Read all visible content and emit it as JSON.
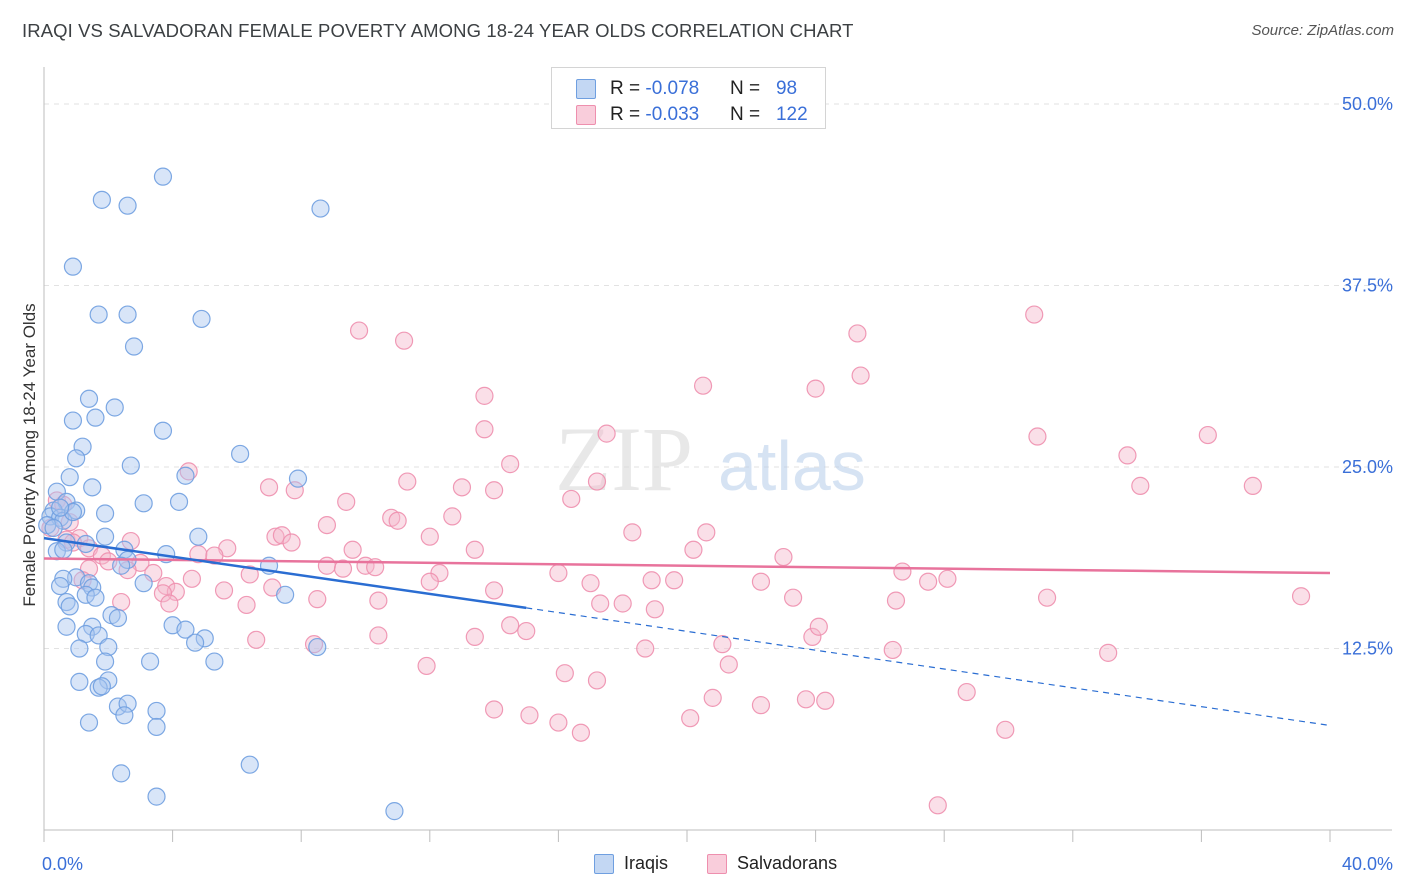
{
  "header": {
    "title": "IRAQI VS SALVADORAN FEMALE POVERTY AMONG 18-24 YEAR OLDS CORRELATION CHART",
    "source": "Source: ZipAtlas.com"
  },
  "legend": {
    "rows": [
      {
        "r_label": "R = ",
        "r_value": "-0.078",
        "n_label": "N = ",
        "n_value": "98"
      },
      {
        "r_label": "R = ",
        "r_value": "-0.033",
        "n_label": "N = ",
        "n_value": "122"
      }
    ],
    "bottom": [
      "Iraqis",
      "Salvadorans"
    ]
  },
  "colors": {
    "iraqis_fill": "#a9c6ef",
    "iraqis_stroke": "#6f9fe0",
    "iraqis_line": "#2a6dd2",
    "salvadorans_fill": "#f5b8cc",
    "salvadorans_stroke": "#ee8fae",
    "salvadorans_line": "#e8739c",
    "tick_label": "#3a6fd8",
    "grid": "#e2e2e2"
  },
  "chart_data": {
    "type": "scatter",
    "title": "IRAQI VS SALVADORAN FEMALE POVERTY AMONG 18-24 YEAR OLDS CORRELATION CHART",
    "xlabel": "",
    "ylabel": "Female Poverty Among 18-24 Year Olds",
    "xlim": [
      0,
      40
    ],
    "ylim": [
      0,
      52
    ],
    "x_tick_labels": [
      "0.0%",
      "40.0%"
    ],
    "y_ticks": [
      12.5,
      25.0,
      37.5,
      50.0
    ],
    "y_tick_labels": [
      "12.5%",
      "25.0%",
      "37.5%",
      "50.0%"
    ],
    "grid": true,
    "watermark": {
      "zip": "ZIP",
      "atlas": "atlas"
    },
    "series": [
      {
        "name": "Iraqis",
        "r": -0.078,
        "n": 98,
        "trend_solid": [
          [
            0,
            20.1
          ],
          [
            15.0,
            15.3
          ]
        ],
        "trend_dashed": [
          [
            15.0,
            15.3
          ],
          [
            40,
            7.2
          ]
        ],
        "points": [
          [
            3.7,
            45.0
          ],
          [
            1.8,
            43.4
          ],
          [
            2.6,
            43.0
          ],
          [
            8.6,
            42.8
          ],
          [
            0.9,
            38.8
          ],
          [
            1.7,
            35.5
          ],
          [
            2.6,
            35.5
          ],
          [
            4.9,
            35.2
          ],
          [
            2.8,
            33.3
          ],
          [
            1.4,
            29.7
          ],
          [
            2.2,
            29.1
          ],
          [
            0.9,
            28.2
          ],
          [
            1.6,
            28.4
          ],
          [
            3.7,
            27.5
          ],
          [
            1.2,
            26.4
          ],
          [
            6.1,
            25.9
          ],
          [
            1.0,
            25.6
          ],
          [
            2.7,
            25.1
          ],
          [
            0.8,
            24.3
          ],
          [
            4.4,
            24.4
          ],
          [
            7.9,
            24.2
          ],
          [
            1.5,
            23.6
          ],
          [
            0.4,
            23.3
          ],
          [
            0.7,
            22.6
          ],
          [
            3.1,
            22.5
          ],
          [
            4.2,
            22.6
          ],
          [
            0.3,
            22.0
          ],
          [
            1.0,
            22.0
          ],
          [
            1.9,
            21.8
          ],
          [
            0.2,
            21.6
          ],
          [
            0.5,
            21.5
          ],
          [
            0.6,
            21.3
          ],
          [
            0.1,
            21.0
          ],
          [
            4.8,
            20.2
          ],
          [
            1.9,
            20.2
          ],
          [
            0.7,
            19.8
          ],
          [
            1.3,
            19.7
          ],
          [
            0.4,
            19.2
          ],
          [
            0.6,
            19.3
          ],
          [
            2.5,
            19.3
          ],
          [
            3.8,
            19.0
          ],
          [
            2.6,
            18.6
          ],
          [
            7.0,
            18.2
          ],
          [
            2.4,
            18.2
          ],
          [
            1.0,
            17.4
          ],
          [
            0.6,
            17.3
          ],
          [
            1.4,
            17.0
          ],
          [
            1.5,
            16.7
          ],
          [
            3.1,
            17.0
          ],
          [
            0.5,
            16.8
          ],
          [
            1.3,
            16.2
          ],
          [
            1.6,
            16.0
          ],
          [
            7.5,
            16.2
          ],
          [
            0.7,
            15.7
          ],
          [
            0.8,
            15.4
          ],
          [
            2.1,
            14.8
          ],
          [
            2.3,
            14.6
          ],
          [
            1.5,
            14.0
          ],
          [
            4.0,
            14.1
          ],
          [
            4.4,
            13.8
          ],
          [
            0.7,
            14.0
          ],
          [
            1.3,
            13.5
          ],
          [
            1.7,
            13.4
          ],
          [
            5.0,
            13.2
          ],
          [
            4.7,
            12.9
          ],
          [
            8.5,
            12.6
          ],
          [
            1.1,
            12.5
          ],
          [
            2.0,
            12.6
          ],
          [
            1.9,
            11.6
          ],
          [
            3.3,
            11.6
          ],
          [
            5.3,
            11.6
          ],
          [
            2.0,
            10.3
          ],
          [
            1.1,
            10.2
          ],
          [
            1.7,
            9.8
          ],
          [
            1.8,
            9.9
          ],
          [
            2.3,
            8.5
          ],
          [
            2.6,
            8.7
          ],
          [
            3.5,
            8.2
          ],
          [
            2.5,
            7.9
          ],
          [
            1.4,
            7.4
          ],
          [
            3.5,
            7.1
          ],
          [
            6.4,
            4.5
          ],
          [
            2.4,
            3.9
          ],
          [
            3.5,
            2.3
          ],
          [
            10.9,
            1.3
          ],
          [
            0.9,
            21.9
          ],
          [
            0.3,
            20.8
          ],
          [
            0.5,
            22.2
          ]
        ]
      },
      {
        "name": "Salvadorans",
        "r": -0.033,
        "n": 122,
        "trend_solid": [
          [
            0,
            18.7
          ],
          [
            40,
            17.7
          ]
        ],
        "points": [
          [
            30.8,
            35.5
          ],
          [
            9.8,
            34.4
          ],
          [
            11.2,
            33.7
          ],
          [
            25.3,
            34.2
          ],
          [
            25.4,
            31.3
          ],
          [
            20.5,
            30.6
          ],
          [
            24.0,
            30.4
          ],
          [
            13.7,
            29.9
          ],
          [
            13.7,
            27.6
          ],
          [
            17.5,
            27.3
          ],
          [
            30.9,
            27.1
          ],
          [
            36.2,
            27.2
          ],
          [
            33.7,
            25.8
          ],
          [
            14.5,
            25.2
          ],
          [
            4.5,
            24.7
          ],
          [
            11.3,
            24.0
          ],
          [
            17.2,
            24.0
          ],
          [
            13.0,
            23.6
          ],
          [
            34.1,
            23.7
          ],
          [
            37.6,
            23.7
          ],
          [
            7.0,
            23.6
          ],
          [
            7.8,
            23.4
          ],
          [
            14.0,
            23.4
          ],
          [
            9.4,
            22.6
          ],
          [
            0.4,
            22.7
          ],
          [
            0.6,
            22.4
          ],
          [
            16.4,
            22.8
          ],
          [
            10.8,
            21.5
          ],
          [
            11.0,
            21.3
          ],
          [
            12.7,
            21.6
          ],
          [
            0.8,
            21.2
          ],
          [
            8.8,
            21.0
          ],
          [
            18.3,
            20.5
          ],
          [
            0.7,
            20.0
          ],
          [
            1.1,
            20.1
          ],
          [
            7.2,
            20.2
          ],
          [
            7.4,
            20.3
          ],
          [
            20.6,
            20.5
          ],
          [
            12.0,
            20.2
          ],
          [
            0.9,
            19.8
          ],
          [
            2.7,
            19.9
          ],
          [
            7.7,
            19.8
          ],
          [
            5.7,
            19.4
          ],
          [
            4.8,
            19.0
          ],
          [
            5.3,
            18.9
          ],
          [
            1.4,
            19.4
          ],
          [
            1.8,
            18.9
          ],
          [
            9.6,
            19.3
          ],
          [
            13.4,
            19.3
          ],
          [
            20.2,
            19.3
          ],
          [
            23.0,
            18.8
          ],
          [
            2.0,
            18.5
          ],
          [
            3.0,
            18.4
          ],
          [
            10.0,
            18.2
          ],
          [
            8.8,
            18.2
          ],
          [
            10.3,
            18.1
          ],
          [
            9.3,
            18.0
          ],
          [
            1.4,
            18.0
          ],
          [
            2.6,
            17.9
          ],
          [
            3.4,
            17.7
          ],
          [
            6.4,
            17.6
          ],
          [
            12.3,
            17.7
          ],
          [
            16.0,
            17.7
          ],
          [
            4.6,
            17.3
          ],
          [
            1.2,
            17.2
          ],
          [
            12.0,
            17.1
          ],
          [
            18.9,
            17.2
          ],
          [
            19.6,
            17.2
          ],
          [
            22.3,
            17.1
          ],
          [
            26.7,
            17.8
          ],
          [
            27.5,
            17.1
          ],
          [
            28.1,
            17.3
          ],
          [
            3.8,
            16.8
          ],
          [
            7.1,
            16.7
          ],
          [
            4.1,
            16.4
          ],
          [
            3.7,
            16.3
          ],
          [
            14.0,
            16.5
          ],
          [
            17.0,
            17.0
          ],
          [
            5.6,
            16.5
          ],
          [
            23.3,
            16.0
          ],
          [
            26.5,
            15.8
          ],
          [
            8.5,
            15.9
          ],
          [
            2.4,
            15.7
          ],
          [
            3.9,
            15.6
          ],
          [
            6.3,
            15.5
          ],
          [
            10.4,
            15.8
          ],
          [
            17.3,
            15.6
          ],
          [
            18.0,
            15.6
          ],
          [
            19.0,
            15.2
          ],
          [
            31.2,
            16.0
          ],
          [
            39.1,
            16.1
          ],
          [
            14.5,
            14.1
          ],
          [
            15.0,
            13.7
          ],
          [
            10.4,
            13.4
          ],
          [
            13.4,
            13.3
          ],
          [
            21.1,
            12.8
          ],
          [
            18.7,
            12.5
          ],
          [
            6.6,
            13.1
          ],
          [
            8.4,
            12.8
          ],
          [
            23.9,
            13.3
          ],
          [
            24.1,
            14.0
          ],
          [
            26.4,
            12.4
          ],
          [
            33.1,
            12.2
          ],
          [
            11.9,
            11.3
          ],
          [
            16.2,
            10.8
          ],
          [
            17.2,
            10.3
          ],
          [
            21.3,
            11.4
          ],
          [
            22.3,
            8.6
          ],
          [
            20.8,
            9.1
          ],
          [
            23.7,
            9.0
          ],
          [
            24.3,
            8.9
          ],
          [
            28.7,
            9.5
          ],
          [
            14.0,
            8.3
          ],
          [
            15.1,
            7.9
          ],
          [
            16.0,
            7.4
          ],
          [
            16.7,
            6.7
          ],
          [
            20.1,
            7.7
          ],
          [
            29.9,
            6.9
          ],
          [
            27.8,
            1.7
          ],
          [
            0.2,
            20.8
          ]
        ]
      }
    ]
  }
}
